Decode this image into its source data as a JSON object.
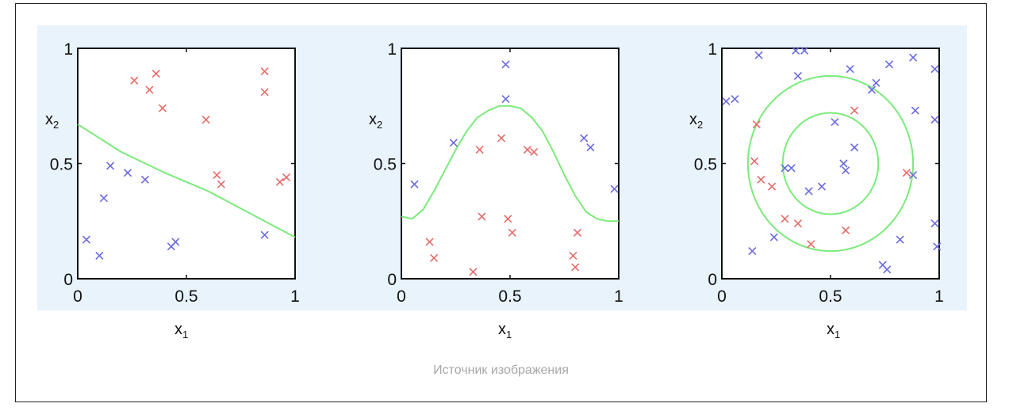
{
  "caption": "Источник изображения",
  "colors": {
    "cross_red": "#e86a6a",
    "cross_blue": "#6a6ae0",
    "boundary": "#7cea7c",
    "panel_bg": "#e8f3fb"
  },
  "chart_data": [
    {
      "type": "scatter",
      "title": "",
      "xlabel": "x1",
      "ylabel": "x2",
      "xlim": [
        0,
        1
      ],
      "ylim": [
        0,
        1
      ],
      "xticks": [
        "0",
        "0.5",
        "1"
      ],
      "yticks": [
        "0",
        "0.5",
        "1"
      ],
      "grid": false,
      "series": [
        {
          "color": "red",
          "marker": "x",
          "points": [
            [
              0.26,
              0.86
            ],
            [
              0.36,
              0.89
            ],
            [
              0.33,
              0.82
            ],
            [
              0.39,
              0.74
            ],
            [
              0.59,
              0.69
            ],
            [
              0.64,
              0.45
            ],
            [
              0.66,
              0.41
            ],
            [
              0.86,
              0.9
            ],
            [
              0.86,
              0.81
            ],
            [
              0.93,
              0.42
            ],
            [
              0.96,
              0.44
            ]
          ]
        },
        {
          "color": "blue",
          "marker": "x",
          "points": [
            [
              0.04,
              0.17
            ],
            [
              0.1,
              0.1
            ],
            [
              0.12,
              0.35
            ],
            [
              0.15,
              0.49
            ],
            [
              0.23,
              0.46
            ],
            [
              0.31,
              0.43
            ],
            [
              0.43,
              0.14
            ],
            [
              0.45,
              0.16
            ],
            [
              0.86,
              0.19
            ]
          ]
        }
      ],
      "boundary": {
        "kind": "line",
        "points": [
          [
            0,
            0.67
          ],
          [
            0.2,
            0.55
          ],
          [
            0.4,
            0.46
          ],
          [
            0.6,
            0.38
          ],
          [
            0.8,
            0.28
          ],
          [
            1,
            0.18
          ]
        ]
      }
    },
    {
      "type": "scatter",
      "title": "",
      "xlabel": "x1",
      "ylabel": "x2",
      "xlim": [
        0,
        1
      ],
      "ylim": [
        0,
        1
      ],
      "xticks": [
        "0",
        "0.5",
        "1"
      ],
      "yticks": [
        "0",
        "0.5",
        "1"
      ],
      "grid": false,
      "series": [
        {
          "color": "red",
          "marker": "x",
          "points": [
            [
              0.36,
              0.56
            ],
            [
              0.46,
              0.61
            ],
            [
              0.58,
              0.56
            ],
            [
              0.61,
              0.55
            ],
            [
              0.37,
              0.27
            ],
            [
              0.49,
              0.26
            ],
            [
              0.51,
              0.2
            ],
            [
              0.13,
              0.16
            ],
            [
              0.15,
              0.09
            ],
            [
              0.33,
              0.03
            ],
            [
              0.81,
              0.2
            ],
            [
              0.79,
              0.1
            ],
            [
              0.8,
              0.05
            ]
          ]
        },
        {
          "color": "blue",
          "marker": "x",
          "points": [
            [
              0.06,
              0.41
            ],
            [
              0.24,
              0.59
            ],
            [
              0.48,
              0.93
            ],
            [
              0.48,
              0.78
            ],
            [
              0.84,
              0.61
            ],
            [
              0.87,
              0.57
            ],
            [
              0.98,
              0.39
            ]
          ]
        }
      ],
      "boundary": {
        "kind": "curve",
        "points": [
          [
            0,
            0.27
          ],
          [
            0.05,
            0.26
          ],
          [
            0.1,
            0.3
          ],
          [
            0.15,
            0.38
          ],
          [
            0.2,
            0.47
          ],
          [
            0.25,
            0.56
          ],
          [
            0.3,
            0.64
          ],
          [
            0.35,
            0.7
          ],
          [
            0.4,
            0.73
          ],
          [
            0.45,
            0.75
          ],
          [
            0.5,
            0.75
          ],
          [
            0.55,
            0.74
          ],
          [
            0.6,
            0.7
          ],
          [
            0.65,
            0.64
          ],
          [
            0.7,
            0.55
          ],
          [
            0.75,
            0.45
          ],
          [
            0.8,
            0.36
          ],
          [
            0.85,
            0.29
          ],
          [
            0.9,
            0.26
          ],
          [
            0.95,
            0.25
          ],
          [
            1,
            0.25
          ]
        ]
      }
    },
    {
      "type": "scatter",
      "title": "",
      "xlabel": "x1",
      "ylabel": "x2",
      "xlim": [
        0,
        1
      ],
      "ylim": [
        0,
        1
      ],
      "xticks": [
        "0",
        "0.5",
        "1"
      ],
      "yticks": [
        "0",
        "0.5",
        "1"
      ],
      "grid": false,
      "series": [
        {
          "color": "red",
          "marker": "x",
          "points": [
            [
              0.16,
              0.67
            ],
            [
              0.15,
              0.51
            ],
            [
              0.18,
              0.43
            ],
            [
              0.23,
              0.4
            ],
            [
              0.29,
              0.26
            ],
            [
              0.35,
              0.24
            ],
            [
              0.41,
              0.15
            ],
            [
              0.57,
              0.21
            ],
            [
              0.61,
              0.73
            ],
            [
              0.85,
              0.46
            ]
          ]
        },
        {
          "color": "blue",
          "marker": "x",
          "points": [
            [
              0.02,
              0.77
            ],
            [
              0.06,
              0.78
            ],
            [
              0.17,
              0.97
            ],
            [
              0.34,
              0.99
            ],
            [
              0.38,
              0.99
            ],
            [
              0.35,
              0.88
            ],
            [
              0.59,
              0.91
            ],
            [
              0.69,
              0.82
            ],
            [
              0.71,
              0.85
            ],
            [
              0.77,
              0.93
            ],
            [
              0.88,
              0.96
            ],
            [
              0.98,
              0.91
            ],
            [
              0.89,
              0.73
            ],
            [
              0.98,
              0.69
            ],
            [
              0.52,
              0.68
            ],
            [
              0.61,
              0.57
            ],
            [
              0.56,
              0.5
            ],
            [
              0.57,
              0.47
            ],
            [
              0.29,
              0.48
            ],
            [
              0.32,
              0.48
            ],
            [
              0.4,
              0.38
            ],
            [
              0.46,
              0.4
            ],
            [
              0.14,
              0.12
            ],
            [
              0.24,
              0.18
            ],
            [
              0.74,
              0.06
            ],
            [
              0.76,
              0.04
            ],
            [
              0.82,
              0.17
            ],
            [
              0.88,
              0.45
            ],
            [
              0.98,
              0.24
            ],
            [
              0.99,
              0.14
            ]
          ]
        }
      ],
      "boundary": {
        "kind": "circles",
        "center": [
          0.5,
          0.5
        ],
        "radii": [
          0.22,
          0.38
        ]
      }
    }
  ]
}
